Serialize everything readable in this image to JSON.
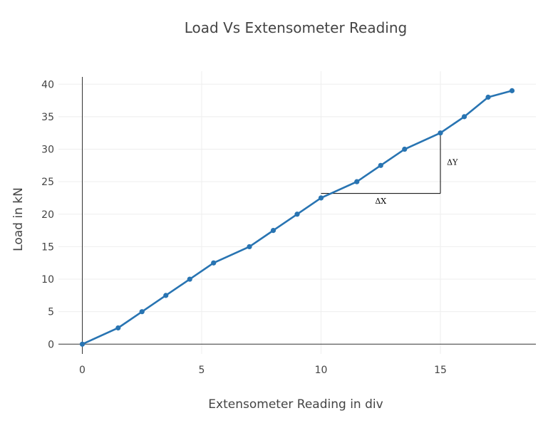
{
  "colors": {
    "series": "#2874b2",
    "grid": "#eeeeee",
    "axis": "#333333",
    "text": "#444444",
    "annotation": "#000000"
  },
  "chart_data": {
    "type": "line",
    "title": "Load Vs Extensometer Reading",
    "xlabel": "Extensometer Reading in div",
    "ylabel": "Load in kN",
    "xlim": [
      -1,
      19
    ],
    "ylim": [
      -1.5,
      42
    ],
    "xticks": [
      0,
      5,
      10,
      15
    ],
    "yticks": [
      0,
      5,
      10,
      15,
      20,
      25,
      30,
      35,
      40
    ],
    "grid": true,
    "markers": true,
    "series": [
      {
        "x": [
          0,
          1.5,
          2.5,
          3.5,
          4.5,
          5.5,
          7,
          8,
          9,
          10,
          11.5,
          12.5,
          13.5,
          15,
          16,
          17,
          18
        ],
        "y": [
          0,
          2.5,
          5,
          7.5,
          10,
          12.5,
          15,
          17.5,
          20,
          22.5,
          25,
          27.5,
          30,
          32.5,
          35,
          38,
          39
        ]
      }
    ],
    "annotations": {
      "triangle": {
        "x0": 10,
        "x1": 15,
        "y0": 23.2,
        "y1": 32.5
      },
      "dx_label": {
        "text": "ΔX",
        "x": 12.5,
        "y": 21.6
      },
      "dy_label": {
        "text": "ΔY",
        "x": 15.5,
        "y": 27.6
      }
    }
  }
}
